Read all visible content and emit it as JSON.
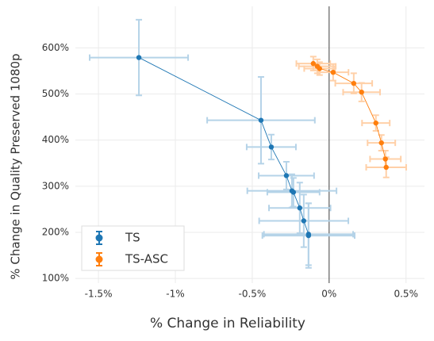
{
  "chart_data": {
    "type": "errorbar-line",
    "x_label": "% Change in Reliability",
    "y_label": "% Change in Quality Preserved 1080p",
    "xlim": [
      -1.65,
      0.62
    ],
    "ylim": [
      90,
      690
    ],
    "xticks": [
      {
        "value": -1.5,
        "label": "-1.5%"
      },
      {
        "value": -1,
        "label": "-1%"
      },
      {
        "value": -0.5,
        "label": "-0.5%"
      },
      {
        "value": 0,
        "label": "0%"
      },
      {
        "value": 0.5,
        "label": "0.5%"
      }
    ],
    "yticks": [
      {
        "value": 100,
        "label": "100%"
      },
      {
        "value": 200,
        "label": "200%"
      },
      {
        "value": 300,
        "label": "300%"
      },
      {
        "value": 400,
        "label": "400%"
      },
      {
        "value": 500,
        "label": "500%"
      },
      {
        "value": 600,
        "label": "600%"
      }
    ],
    "grid": true,
    "vline": 0,
    "legend": "bottom-left",
    "series": [
      {
        "name": "TS",
        "color": "#1f77b4",
        "error_color": "#b5d3e8",
        "x": [
          -1.237,
          -0.443,
          -0.376,
          -0.278,
          -0.242,
          -0.232,
          -0.191,
          -0.165,
          -0.134,
          -0.134
        ],
        "values": [
          579,
          443,
          385,
          323,
          290,
          287,
          253,
          225,
          196,
          193
        ],
        "xerr": [
          0.32,
          0.35,
          0.16,
          0.18,
          0.29,
          0.17,
          0.2,
          0.29,
          0.29,
          0.3
        ],
        "yerr": [
          82,
          94,
          27,
          30,
          36,
          31,
          55,
          57,
          67,
          70
        ]
      },
      {
        "name": "TS-ASC",
        "color": "#ff7f0e",
        "error_color": "#ffd0a8",
        "x": [
          -0.103,
          -0.077,
          -0.062,
          0.026,
          0.16,
          0.211,
          0.304,
          0.34,
          0.366,
          0.371
        ],
        "values": [
          566,
          560,
          555,
          547,
          523,
          504,
          437,
          394,
          359,
          341
        ],
        "xerr": [
          0.11,
          0.12,
          0.1,
          0.1,
          0.12,
          0.12,
          0.09,
          0.09,
          0.1,
          0.13
        ],
        "yerr": [
          15,
          15,
          14,
          18,
          22,
          20,
          17,
          17,
          18,
          22
        ]
      }
    ]
  }
}
